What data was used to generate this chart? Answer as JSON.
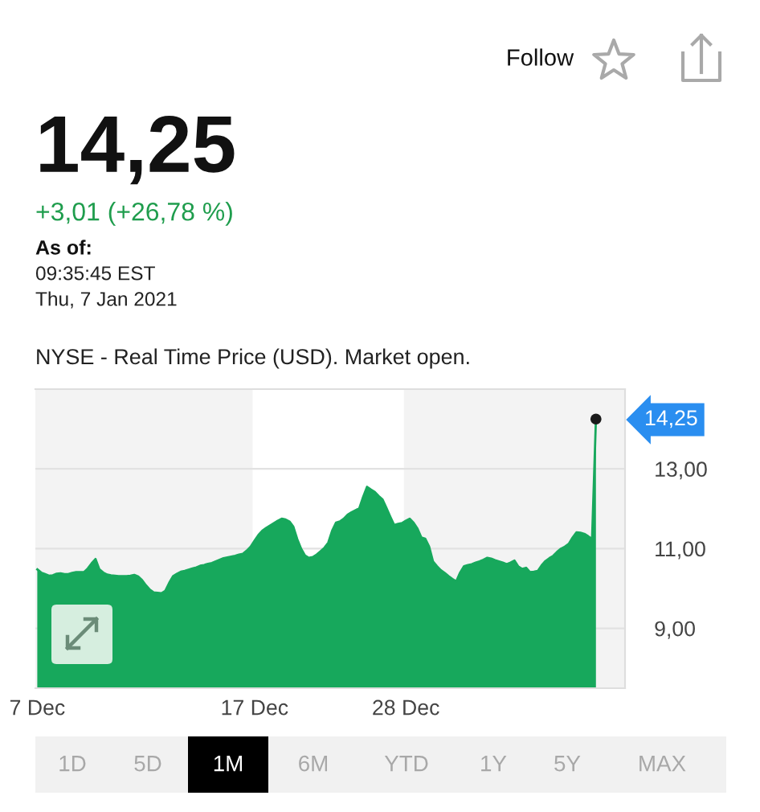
{
  "chart_data": {
    "type": "area",
    "title": "14,25",
    "subtitle": "+3,01 (+26,78 %)",
    "annotations": [
      "As of:",
      "09:35:45 EST",
      "Thu, 7 Jan 2021",
      "NYSE - Real Time Price (USD). Market open.",
      "Follow",
      "1D",
      "5D",
      "1M",
      "6M",
      "YTD",
      "1Y",
      "5Y",
      "MAX",
      "14,25"
    ],
    "categories": [
      "7 Dec",
      null,
      null,
      null,
      null,
      null,
      null,
      null,
      null,
      null,
      null,
      null,
      null,
      null,
      null,
      null,
      null,
      null,
      null,
      null,
      null,
      null,
      null,
      null,
      null,
      null,
      null,
      null,
      null,
      null,
      null,
      null,
      null,
      null,
      null,
      null,
      null,
      null,
      null,
      null,
      null,
      null,
      null,
      null,
      null,
      null,
      null,
      null,
      null,
      null,
      null,
      null,
      null,
      null,
      null,
      null,
      "17 Dec",
      null,
      null,
      null,
      null,
      null,
      null,
      null,
      null,
      null,
      null,
      null,
      null,
      null,
      null,
      null,
      null,
      null,
      null,
      null,
      null,
      null,
      null,
      null,
      null,
      null,
      null,
      null,
      null,
      null,
      null,
      null,
      null,
      null,
      null,
      null,
      null,
      null,
      null,
      "28 Dec",
      null,
      null,
      null,
      null,
      null,
      null,
      null,
      null,
      null,
      null,
      null,
      null,
      null,
      null,
      null,
      null,
      null,
      null,
      null,
      null,
      null,
      null,
      null,
      null,
      null,
      null,
      null,
      null,
      null,
      null,
      null,
      null,
      null,
      null,
      null,
      null,
      null,
      null,
      null,
      null,
      null,
      null,
      null,
      null,
      null,
      null,
      null,
      null,
      null,
      null,
      null,
      null,
      null,
      null,
      null,
      null
    ],
    "series": [
      {
        "color": "#17a85c",
        "values": [
          10.48,
          10.4,
          10.36,
          10.32,
          10.33,
          10.37,
          10.38,
          10.36,
          10.36,
          10.39,
          10.41,
          10.41,
          10.41,
          10.5,
          10.63,
          10.74,
          10.48,
          10.4,
          10.35,
          10.33,
          10.32,
          10.31,
          10.31,
          10.31,
          10.32,
          10.34,
          10.3,
          10.21,
          10.08,
          9.97,
          9.9,
          9.89,
          9.88,
          9.94,
          10.14,
          10.31,
          10.37,
          10.42,
          10.44,
          10.47,
          10.5,
          10.53,
          10.57,
          10.59,
          10.62,
          10.64,
          10.68,
          10.72,
          10.76,
          10.78,
          10.8,
          10.82,
          10.85,
          10.87,
          10.95,
          11.05,
          11.2,
          11.34,
          11.45,
          11.52,
          11.58,
          11.64,
          11.7,
          11.75,
          11.73,
          11.68,
          11.55,
          11.24,
          11.0,
          10.83,
          10.77,
          10.79,
          10.85,
          10.93,
          11.02,
          11.15,
          11.45,
          11.65,
          11.68,
          11.75,
          11.85,
          11.91,
          11.96,
          12.01,
          12.3,
          12.55,
          12.48,
          12.42,
          12.32,
          12.23,
          12.02,
          11.8,
          11.59,
          11.62,
          11.64,
          11.7,
          11.75,
          11.65,
          11.5,
          11.28,
          11.25,
          11.05,
          10.68,
          10.56,
          10.46,
          10.39,
          10.31,
          10.24,
          10.18,
          10.4,
          10.56,
          10.59,
          10.61,
          10.65,
          10.68,
          10.72,
          10.77,
          10.75,
          10.71,
          10.68,
          10.65,
          10.61,
          10.65,
          10.7,
          10.55,
          10.49,
          10.52,
          10.41,
          10.42,
          10.44,
          10.58,
          10.69,
          10.76,
          10.82,
          10.92,
          11.0,
          11.05,
          11.12,
          11.28,
          11.41,
          11.4,
          11.37,
          11.31,
          11.24,
          14.25,
          null,
          null,
          null,
          null,
          null,
          null,
          null
        ]
      },
      {
        "type": "scatter",
        "color": "#1a1a1a",
        "values": [
          null,
          null,
          null,
          null,
          null,
          null,
          null,
          null,
          null,
          null,
          null,
          null,
          null,
          null,
          null,
          null,
          null,
          null,
          null,
          null,
          null,
          null,
          null,
          null,
          null,
          null,
          null,
          null,
          null,
          null,
          null,
          null,
          null,
          null,
          null,
          null,
          null,
          null,
          null,
          null,
          null,
          null,
          null,
          null,
          null,
          null,
          null,
          null,
          null,
          null,
          null,
          null,
          null,
          null,
          null,
          null,
          null,
          null,
          null,
          null,
          null,
          null,
          null,
          null,
          null,
          null,
          null,
          null,
          null,
          null,
          null,
          null,
          null,
          null,
          null,
          null,
          null,
          null,
          null,
          null,
          null,
          null,
          null,
          null,
          null,
          null,
          null,
          null,
          null,
          null,
          null,
          null,
          null,
          null,
          null,
          null,
          null,
          null,
          null,
          null,
          null,
          null,
          null,
          null,
          null,
          null,
          null,
          null,
          null,
          null,
          null,
          null,
          null,
          null,
          null,
          null,
          null,
          null,
          null,
          null,
          null,
          null,
          null,
          null,
          null,
          null,
          null,
          null,
          null,
          null,
          null,
          null,
          null,
          null,
          null,
          null,
          null,
          null,
          null,
          null,
          null,
          null,
          null,
          null,
          14.25,
          null,
          null,
          null,
          null,
          null,
          null,
          null
        ]
      }
    ],
    "ylim": [
      7.5,
      15
    ],
    "yticks": [
      {
        "value": 9,
        "label": "9,00"
      },
      {
        "value": 11,
        "label": "11,00"
      },
      {
        "value": 13,
        "label": "13,00"
      }
    ],
    "grid": "y",
    "bands": [
      {
        "axis": "x",
        "from": "17 Dec",
        "to": "28 Dec",
        "color": "#ffffff"
      }
    ]
  }
}
